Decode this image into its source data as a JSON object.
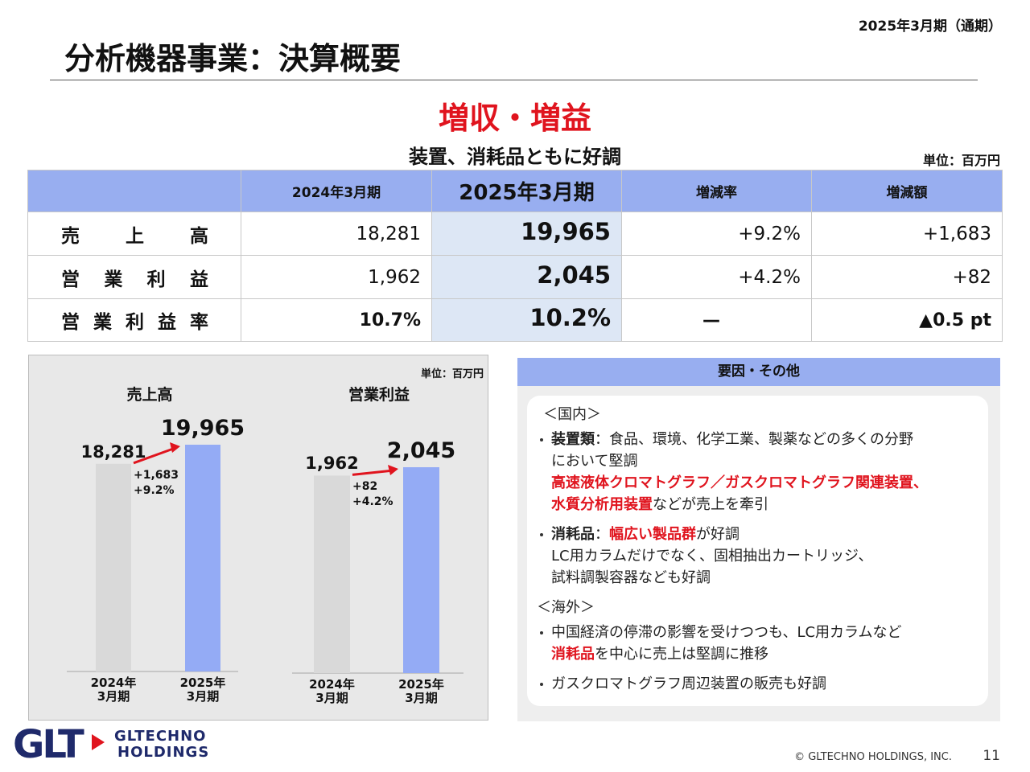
{
  "header": {
    "period": "2025年3月期（通期）",
    "title": "分析機器事業：決算概要",
    "headline": "増収・増益",
    "subheadline": "装置、消耗品ともに好調",
    "unit": "単位：百万円"
  },
  "table": {
    "columns": [
      "2024年3月期",
      "2025年3月期",
      "増減率",
      "増減額"
    ],
    "rows": [
      {
        "label": "売上高",
        "cells": [
          "18,281",
          "19,965",
          "+9.2%",
          "+1,683"
        ]
      },
      {
        "label": "営業利益",
        "cells": [
          "1,962",
          "2,045",
          "+4.2%",
          "+82"
        ]
      },
      {
        "label": "営業利益率",
        "cells": [
          "10.7%",
          "10.2%",
          "—",
          "▲0.5 pt"
        ]
      }
    ]
  },
  "charts_unit": "単位：百万円",
  "chart_data": [
    {
      "type": "bar",
      "title": "売上高",
      "categories": [
        "2024年3月期",
        "2025年3月期"
      ],
      "values": [
        18281,
        19965
      ],
      "value_labels": [
        "18,281",
        "19,965"
      ],
      "colors": [
        "#d9d9d9",
        "#94abf5"
      ],
      "annotations": [
        "+1,683",
        "+9.2%"
      ]
    },
    {
      "type": "bar",
      "title": "営業利益",
      "categories": [
        "2024年3月期",
        "2025年3月期"
      ],
      "values": [
        1962,
        2045
      ],
      "value_labels": [
        "1,962",
        "2,045"
      ],
      "colors": [
        "#d9d9d9",
        "#94abf5"
      ],
      "annotations": [
        "+82",
        "+4.2%"
      ]
    }
  ],
  "factors": {
    "title": "要因・その他",
    "sections": [
      {
        "heading": "＜国内＞",
        "items": [
          {
            "lines": [
              [
                {
                  "text": "装置類",
                  "style": "bold"
                },
                {
                  "text": "：食品、環境、化学工業、製薬などの多くの分野",
                  "style": "normal"
                }
              ],
              [
                {
                  "text": "において堅調",
                  "style": "normal"
                }
              ],
              [
                {
                  "text": "高速液体クロマトグラフ／ガスクロマトグラフ関連装置、",
                  "style": "red"
                }
              ],
              [
                {
                  "text": "水質分析用装置",
                  "style": "red"
                },
                {
                  "text": "などが売上を牽引",
                  "style": "normal"
                }
              ]
            ]
          },
          {
            "lines": [
              [
                {
                  "text": "消耗品",
                  "style": "bold"
                },
                {
                  "text": "：",
                  "style": "normal"
                },
                {
                  "text": "幅広い製品群",
                  "style": "red"
                },
                {
                  "text": "が好調",
                  "style": "normal"
                }
              ],
              [
                {
                  "text": "LC用カラムだけでなく、固相抽出カートリッジ、",
                  "style": "normal"
                }
              ],
              [
                {
                  "text": "試料調製容器なども好調",
                  "style": "normal"
                }
              ]
            ]
          }
        ]
      },
      {
        "heading": "＜海外＞",
        "items": [
          {
            "lines": [
              [
                {
                  "text": "中国経済の停滞の影響を受けつつも、LC用カラムなど",
                  "style": "normal"
                }
              ],
              [
                {
                  "text": "消耗品",
                  "style": "red"
                },
                {
                  "text": "を中心に売上は堅調に推移",
                  "style": "normal"
                }
              ]
            ]
          },
          {
            "lines": [
              [
                {
                  "text": "ガスクロマトグラフ周辺装置の販売も好調",
                  "style": "normal"
                }
              ]
            ]
          }
        ]
      }
    ]
  },
  "footer": {
    "logo_mark": "GLT",
    "logo_line1": "GLTECHNO",
    "logo_line2": "HOLDINGS",
    "copyright": "© GLTECHNO HOLDINGS, INC.",
    "page": "11"
  }
}
